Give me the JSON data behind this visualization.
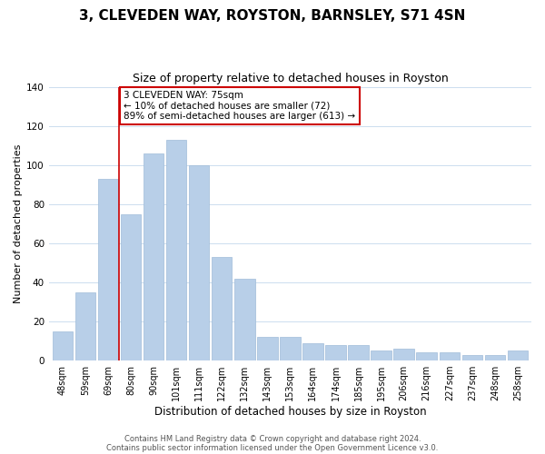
{
  "title": "3, CLEVEDEN WAY, ROYSTON, BARNSLEY, S71 4SN",
  "subtitle": "Size of property relative to detached houses in Royston",
  "xlabel": "Distribution of detached houses by size in Royston",
  "ylabel": "Number of detached properties",
  "bar_labels": [
    "48sqm",
    "59sqm",
    "69sqm",
    "80sqm",
    "90sqm",
    "101sqm",
    "111sqm",
    "122sqm",
    "132sqm",
    "143sqm",
    "153sqm",
    "164sqm",
    "174sqm",
    "185sqm",
    "195sqm",
    "206sqm",
    "216sqm",
    "227sqm",
    "237sqm",
    "248sqm",
    "258sqm"
  ],
  "bar_values": [
    15,
    35,
    93,
    75,
    106,
    113,
    100,
    53,
    42,
    12,
    12,
    9,
    8,
    8,
    5,
    6,
    4,
    4,
    3,
    3,
    5
  ],
  "bar_color": "#b8cfe8",
  "bar_edge_color": "#a0bbd8",
  "vline_color": "#cc0000",
  "annotation_title": "3 CLEVEDEN WAY: 75sqm",
  "annotation_line1": "← 10% of detached houses are smaller (72)",
  "annotation_line2": "89% of semi-detached houses are larger (613) →",
  "annotation_box_color": "#ffffff",
  "annotation_box_edge_color": "#cc0000",
  "ylim": [
    0,
    140
  ],
  "footer1": "Contains HM Land Registry data © Crown copyright and database right 2024.",
  "footer2": "Contains public sector information licensed under the Open Government Licence v3.0.",
  "title_fontsize": 11,
  "subtitle_fontsize": 9,
  "ylabel_fontsize": 8,
  "xlabel_fontsize": 8.5,
  "tick_fontsize": 7,
  "ytick_fontsize": 7.5,
  "annotation_fontsize": 7.5,
  "footer_fontsize": 6
}
